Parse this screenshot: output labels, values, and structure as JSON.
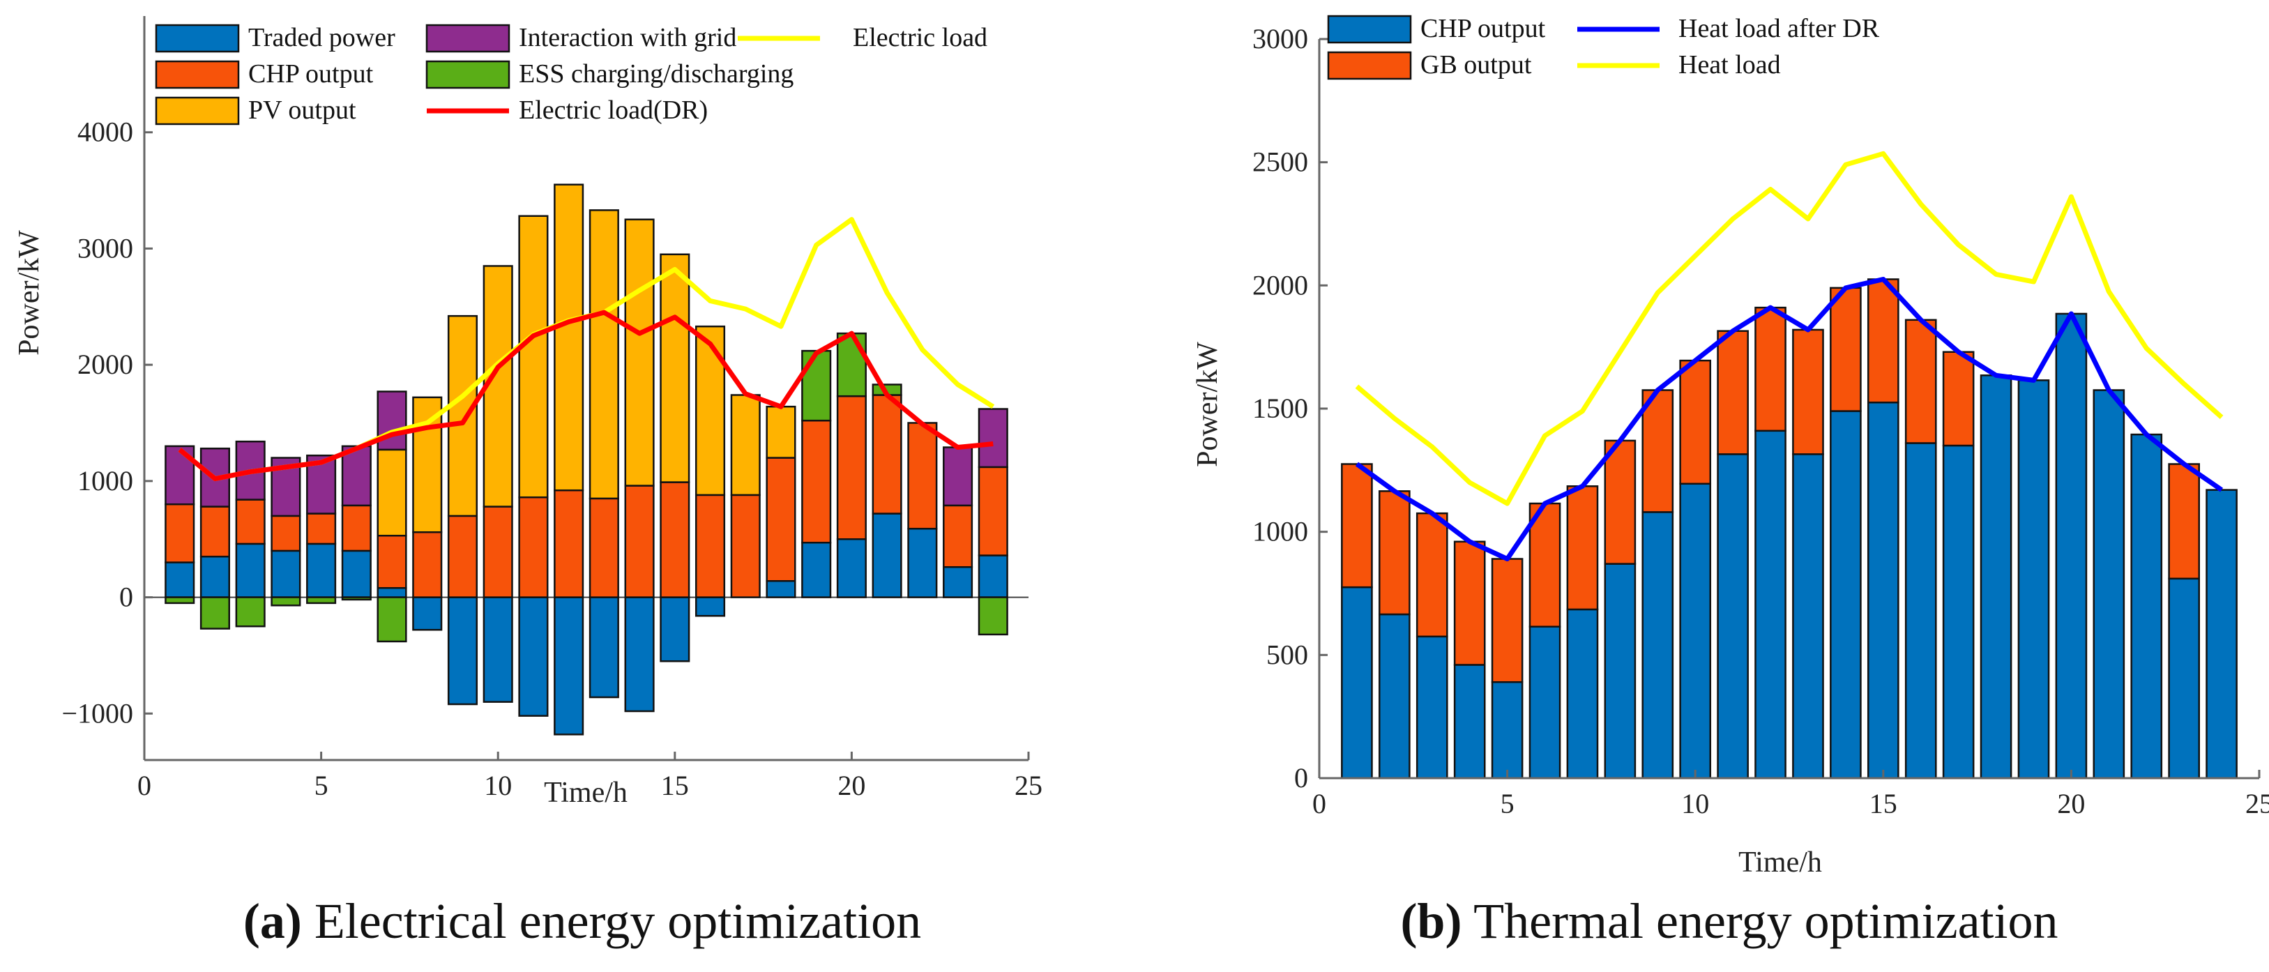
{
  "colors": {
    "traded": "#0072BD",
    "chp": "#F7530A",
    "pv": "#FFB300",
    "grid": "#8E2C8E",
    "ess": "#5AAE17",
    "load": "#FFFF00",
    "load_dr": "#FF0000",
    "gb": "#F7530A",
    "heat_dr": "#0000FF",
    "heat": "#FFFF00"
  },
  "captions": {
    "a_letter": "(a)",
    "a_text": " Electrical energy optimization",
    "b_letter": "(b)",
    "b_text": " Thermal energy optimization"
  },
  "chart_data": [
    {
      "type": "bar",
      "stacked": true,
      "title": "Electrical energy optimization",
      "xlabel": "Time/h",
      "ylabel": "Power/kW",
      "xlim": [
        0,
        25
      ],
      "ylim": [
        -1400,
        5000
      ],
      "xticks": [
        0,
        5,
        10,
        15,
        20,
        25
      ],
      "yticks": [
        -1000,
        0,
        1000,
        2000,
        3000,
        4000
      ],
      "legend_position": "top",
      "x": [
        1,
        2,
        3,
        4,
        5,
        6,
        7,
        8,
        9,
        10,
        11,
        12,
        13,
        14,
        15,
        16,
        17,
        18,
        19,
        20,
        21,
        22,
        23,
        24
      ],
      "series": [
        {
          "name": "Traded power",
          "kind": "bar",
          "color_key": "traded",
          "values": [
            300,
            350,
            460,
            400,
            460,
            400,
            80,
            -280,
            -920,
            -900,
            -1020,
            -1180,
            -860,
            -980,
            -550,
            -160,
            0,
            140,
            470,
            500,
            720,
            590,
            260,
            360
          ]
        },
        {
          "name": "CHP output",
          "kind": "bar",
          "color_key": "chp",
          "values": [
            500,
            430,
            380,
            300,
            260,
            390,
            450,
            560,
            700,
            780,
            860,
            920,
            850,
            960,
            990,
            880,
            880,
            1060,
            1050,
            1230,
            1020,
            910,
            530,
            760
          ]
        },
        {
          "name": "PV output",
          "kind": "bar",
          "color_key": "pv",
          "values": [
            0,
            0,
            0,
            0,
            0,
            0,
            740,
            1160,
            1720,
            2070,
            2420,
            2630,
            2480,
            2290,
            1960,
            1450,
            860,
            440,
            0,
            0,
            0,
            0,
            0,
            0
          ]
        },
        {
          "name": "Interaction with grid",
          "kind": "bar",
          "color_key": "grid",
          "values": [
            500,
            500,
            500,
            500,
            500,
            510,
            500,
            0,
            0,
            0,
            0,
            0,
            0,
            0,
            0,
            0,
            0,
            0,
            0,
            0,
            0,
            0,
            500,
            500
          ]
        },
        {
          "name": "ESS charging/discharging",
          "kind": "bar",
          "color_key": "ess",
          "values": [
            -50,
            -270,
            -250,
            -70,
            -50,
            -20,
            -380,
            0,
            0,
            0,
            0,
            0,
            0,
            0,
            0,
            0,
            0,
            0,
            600,
            540,
            90,
            0,
            0,
            -320
          ]
        },
        {
          "name": "Electric load(DR)",
          "kind": "line",
          "color_key": "load_dr",
          "values": [
            1270,
            1020,
            1080,
            1120,
            1160,
            1280,
            1400,
            1460,
            1500,
            1980,
            2250,
            2370,
            2450,
            2270,
            2410,
            2180,
            1750,
            1640,
            2100,
            2270,
            1740,
            1490,
            1290,
            1320
          ]
        },
        {
          "name": "Electric load",
          "kind": "line",
          "color_key": "load",
          "values": [
            1270,
            1020,
            1080,
            1120,
            1160,
            1280,
            1420,
            1500,
            1730,
            2010,
            2260,
            2380,
            2450,
            2640,
            2820,
            2550,
            2480,
            2330,
            3030,
            3250,
            2620,
            2130,
            1830,
            1640
          ]
        }
      ]
    },
    {
      "type": "bar",
      "stacked": true,
      "title": "Thermal energy optimization",
      "xlabel": "Time/h",
      "ylabel": "Power/kW",
      "xlim": [
        0,
        25
      ],
      "ylim": [
        0,
        3000
      ],
      "xticks": [
        0,
        5,
        10,
        15,
        20,
        25
      ],
      "yticks": [
        0,
        500,
        1000,
        1500,
        2000,
        2500,
        3000
      ],
      "legend_position": "top-left",
      "x": [
        1,
        2,
        3,
        4,
        5,
        6,
        7,
        8,
        9,
        10,
        11,
        12,
        13,
        14,
        15,
        16,
        17,
        18,
        19,
        20,
        21,
        22,
        23,
        24
      ],
      "series": [
        {
          "name": "CHP output",
          "kind": "bar",
          "color_key": "traded",
          "values": [
            775,
            665,
            575,
            460,
            390,
            615,
            685,
            870,
            1080,
            1195,
            1315,
            1410,
            1315,
            1490,
            1525,
            1360,
            1350,
            1635,
            1615,
            1885,
            1575,
            1395,
            810,
            1170
          ]
        },
        {
          "name": "GB output",
          "kind": "bar",
          "color_key": "gb",
          "values": [
            500,
            500,
            500,
            500,
            500,
            500,
            500,
            500,
            495,
            500,
            500,
            500,
            505,
            500,
            500,
            500,
            380,
            0,
            0,
            0,
            0,
            0,
            465,
            0
          ]
        },
        {
          "name": "Heat load after DR",
          "kind": "line",
          "color_key": "heat_dr",
          "values": [
            1275,
            1165,
            1075,
            960,
            890,
            1115,
            1185,
            1370,
            1575,
            1695,
            1815,
            1910,
            1820,
            1990,
            2025,
            1860,
            1730,
            1635,
            1615,
            1885,
            1575,
            1395,
            1275,
            1170
          ]
        },
        {
          "name": "Heat load",
          "kind": "line",
          "color_key": "heat",
          "values": [
            1590,
            1460,
            1345,
            1200,
            1115,
            1390,
            1490,
            1730,
            1970,
            2120,
            2270,
            2390,
            2270,
            2490,
            2535,
            2330,
            2165,
            2045,
            2015,
            2360,
            1975,
            1745,
            1600,
            1465
          ]
        }
      ]
    }
  ]
}
